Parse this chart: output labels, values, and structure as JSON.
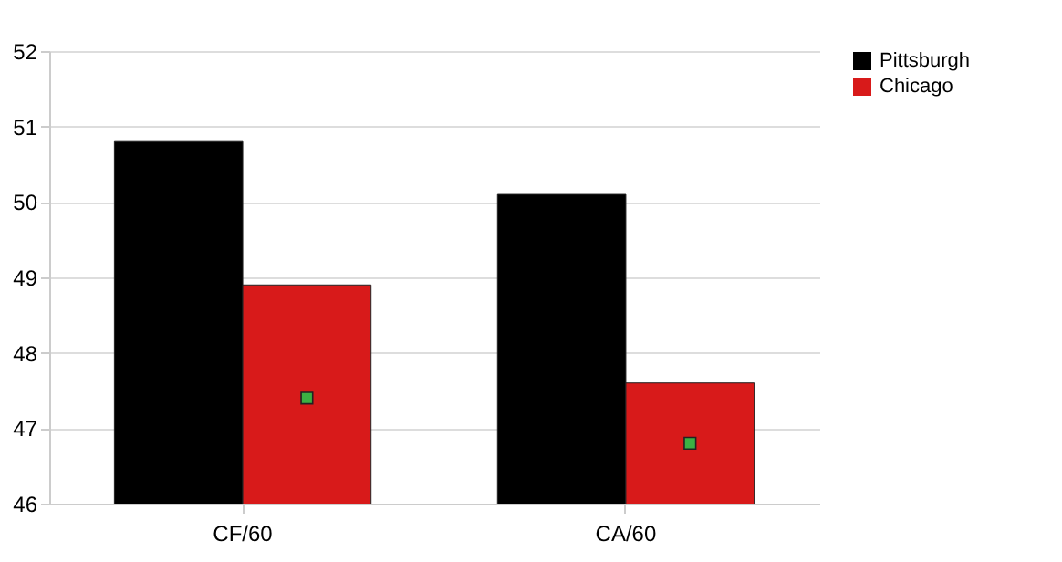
{
  "chart_data": {
    "type": "bar",
    "categories": [
      "CF/60",
      "CA/60"
    ],
    "series": [
      {
        "name": "Pittsburgh",
        "color": "#000000",
        "values": [
          50.8,
          50.1
        ]
      },
      {
        "name": "Chicago",
        "color": "#d81a1a",
        "values": [
          48.9,
          47.6
        ]
      },
      {
        "type": "scatter",
        "color": "#3cb043",
        "x": [
          "CF/60",
          "CA/60"
        ],
        "values": [
          47.4,
          46.8
        ]
      }
    ],
    "ylim": [
      46,
      52
    ],
    "yticks": [
      46,
      47,
      48,
      49,
      50,
      51,
      52
    ],
    "grid": "y",
    "legend": "right",
    "marker": "square"
  }
}
